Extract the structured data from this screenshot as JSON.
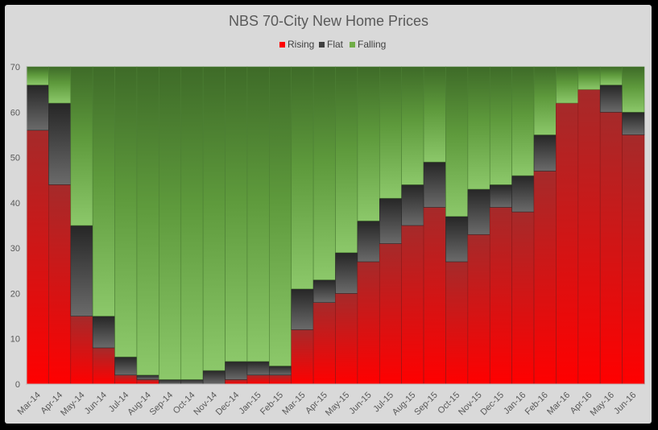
{
  "chart_data": {
    "type": "bar",
    "stacked": true,
    "title": "NBS 70-City New Home Prices",
    "xlabel": "",
    "ylabel": "",
    "ylim": [
      0,
      70
    ],
    "yticks": [
      "0",
      "10",
      "20",
      "30",
      "40",
      "50",
      "60",
      "70"
    ],
    "grid": false,
    "legend_position": "top-center",
    "categories": [
      "Mar-14",
      "Apr-14",
      "May-14",
      "Jun-14",
      "Jul-14",
      "Aug-14",
      "Sep-14",
      "Oct-14",
      "Nov-14",
      "Dec-14",
      "Jan-15",
      "Feb-15",
      "Mar-15",
      "Apr-15",
      "May-15",
      "Jun-15",
      "Jul-15",
      "Aug-15",
      "Sep-15",
      "Oct-15",
      "Nov-15",
      "Dec-15",
      "Jan-16",
      "Feb-16",
      "Mar-16",
      "Apr-16",
      "May-16",
      "Jun-16"
    ],
    "series": [
      {
        "name": "Rising",
        "color": "#ff0000",
        "values": [
          56,
          44,
          15,
          8,
          2,
          1,
          0,
          0,
          0,
          1,
          2,
          2,
          12,
          18,
          20,
          27,
          31,
          35,
          39,
          27,
          33,
          39,
          38,
          47,
          62,
          65,
          60,
          55
        ]
      },
      {
        "name": "Flat",
        "color": "#404040",
        "values": [
          10,
          18,
          20,
          7,
          4,
          1,
          1,
          1,
          3,
          4,
          3,
          2,
          9,
          5,
          9,
          9,
          10,
          9,
          10,
          10,
          10,
          5,
          8,
          8,
          0,
          0,
          6,
          5
        ]
      },
      {
        "name": "Falling",
        "color": "#70ad47",
        "values": [
          4,
          8,
          35,
          55,
          64,
          68,
          69,
          69,
          67,
          65,
          65,
          66,
          49,
          47,
          41,
          34,
          29,
          26,
          21,
          33,
          27,
          26,
          24,
          15,
          8,
          5,
          4,
          10
        ]
      }
    ]
  }
}
